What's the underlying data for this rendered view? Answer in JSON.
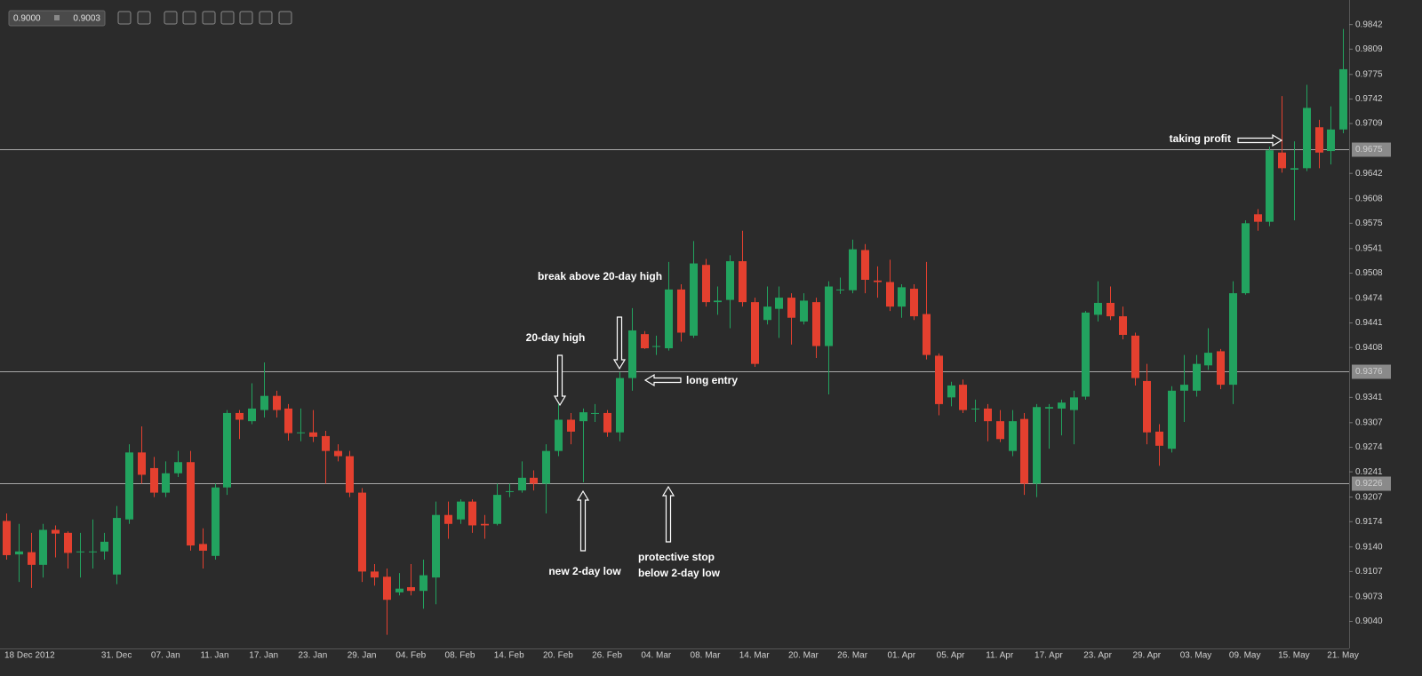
{
  "toolbar": {
    "bid": "0.9000",
    "ask": "0.9003"
  },
  "chart_data": {
    "type": "candlestick",
    "up_color": "#22a35f",
    "down_color": "#e4402f",
    "categories": [
      "18 Dec 2012",
      null,
      null,
      null,
      null,
      null,
      null,
      null,
      null,
      "31. Dec",
      null,
      null,
      null,
      "07. Jan",
      null,
      null,
      null,
      "11. Jan",
      null,
      null,
      null,
      "17. Jan",
      null,
      null,
      null,
      "23. Jan",
      null,
      null,
      null,
      "29. Jan",
      null,
      null,
      null,
      "04. Feb",
      null,
      null,
      null,
      "08. Feb",
      null,
      null,
      null,
      "14. Feb",
      null,
      null,
      null,
      "20. Feb",
      null,
      null,
      null,
      "26. Feb",
      null,
      null,
      null,
      "04. Mar",
      null,
      null,
      null,
      "08. Mar",
      null,
      null,
      null,
      "14. Mar",
      null,
      null,
      null,
      "20. Mar",
      null,
      null,
      null,
      "26. Mar",
      null,
      null,
      null,
      "01. Apr",
      null,
      null,
      null,
      "05. Apr",
      null,
      null,
      null,
      "11. Apr",
      null,
      null,
      null,
      "17. Apr",
      null,
      null,
      null,
      "23. Apr",
      null,
      null,
      null,
      "29. Apr",
      null,
      null,
      null,
      "03. May",
      null,
      null,
      null,
      "09. May",
      null,
      null,
      null,
      "15. May",
      null,
      null,
      null,
      "21. May"
    ],
    "open": [
      0.9175,
      0.913,
      0.9133,
      0.9116,
      0.9163,
      0.9159,
      0.9133,
      0.9133,
      0.9134,
      0.9103,
      0.9177,
      0.9267,
      0.9246,
      0.9213,
      0.9239,
      0.9254,
      0.9144,
      0.9128,
      0.922,
      0.932,
      0.9309,
      0.9324,
      0.9343,
      0.9326,
      0.9293,
      0.9294,
      0.9289,
      0.9269,
      0.9262,
      0.9213,
      0.9107,
      0.91,
      0.9079,
      0.9086,
      0.9081,
      0.9099,
      0.9183,
      0.9177,
      0.9201,
      0.9171,
      0.9171,
      0.9214,
      0.9216,
      0.9233,
      0.9225,
      0.9269,
      0.9311,
      0.9309,
      0.9319,
      0.932,
      0.9294,
      0.9367,
      0.9426,
      0.9409,
      0.9407,
      0.9486,
      0.9424,
      0.9519,
      0.9469,
      0.9472,
      0.9524,
      0.9469,
      0.9445,
      0.946,
      0.9475,
      0.9443,
      0.9469,
      0.941,
      0.9485,
      0.9485,
      0.9539,
      0.9498,
      0.9496,
      0.9463,
      0.9487,
      0.9453,
      0.9397,
      0.9341,
      0.9358,
      0.9325,
      0.9326,
      0.9309,
      0.9269,
      0.9312,
      0.9225,
      0.9326,
      0.9326,
      0.9324,
      0.9342,
      0.9452,
      0.9468,
      0.945,
      0.9424,
      0.9363,
      0.9295,
      0.9272,
      0.935,
      0.935,
      0.9384,
      0.9403,
      0.9358,
      0.9481,
      0.9587,
      0.9577,
      0.967,
      0.9647,
      0.9649,
      0.9704,
      0.9672,
      0.9701
    ],
    "high": [
      0.9185,
      0.9171,
      0.9159,
      0.9171,
      0.9169,
      0.9161,
      0.9159,
      0.9177,
      0.9159,
      0.9195,
      0.9278,
      0.9302,
      0.9261,
      0.9255,
      0.9269,
      0.9269,
      0.9165,
      0.9225,
      0.9324,
      0.9324,
      0.936,
      0.9388,
      0.935,
      0.9332,
      0.9326,
      0.9324,
      0.9296,
      0.9278,
      0.9269,
      0.9219,
      0.9117,
      0.9111,
      0.9105,
      0.9117,
      0.9123,
      0.9201,
      0.9201,
      0.9204,
      0.9204,
      0.9183,
      0.9225,
      0.9225,
      0.9255,
      0.9243,
      0.9278,
      0.9332,
      0.932,
      0.9326,
      0.9332,
      0.9324,
      0.9375,
      0.9461,
      0.943,
      0.9424,
      0.9523,
      0.9493,
      0.9551,
      0.9527,
      0.949,
      0.9532,
      0.9565,
      0.9475,
      0.949,
      0.949,
      0.9481,
      0.9481,
      0.9475,
      0.9497,
      0.9502,
      0.9553,
      0.9547,
      0.9517,
      0.9526,
      0.9493,
      0.9493,
      0.9523,
      0.94,
      0.9362,
      0.9365,
      0.9338,
      0.9332,
      0.9324,
      0.9324,
      0.932,
      0.9332,
      0.9332,
      0.9338,
      0.935,
      0.9457,
      0.9497,
      0.949,
      0.9463,
      0.9428,
      0.9386,
      0.9305,
      0.9356,
      0.9398,
      0.9398,
      0.9434,
      0.9406,
      0.9497,
      0.9579,
      0.9594,
      0.9678,
      0.9746,
      0.9685,
      0.9761,
      0.9714,
      0.9732,
      0.9836
    ],
    "low": [
      0.9123,
      0.9093,
      0.9085,
      0.9099,
      0.9126,
      0.9111,
      0.9099,
      0.9111,
      0.9123,
      0.909,
      0.9171,
      0.9225,
      0.9207,
      0.9207,
      0.9234,
      0.9135,
      0.9111,
      0.9123,
      0.921,
      0.9285,
      0.9305,
      0.9314,
      0.9314,
      0.9283,
      0.9282,
      0.9281,
      0.9225,
      0.9255,
      0.9207,
      0.9093,
      0.9088,
      0.9022,
      0.9075,
      0.9075,
      0.9057,
      0.9063,
      0.9151,
      0.9171,
      0.9159,
      0.9151,
      0.9169,
      0.9207,
      0.9213,
      0.9216,
      0.9185,
      0.9262,
      0.9278,
      0.9227,
      0.9308,
      0.9288,
      0.9282,
      0.935,
      0.9406,
      0.9398,
      0.9404,
      0.9416,
      0.9421,
      0.9463,
      0.9452,
      0.9434,
      0.9463,
      0.9382,
      0.9439,
      0.9421,
      0.9412,
      0.9439,
      0.9394,
      0.9345,
      0.948,
      0.9481,
      0.9481,
      0.9475,
      0.9457,
      0.9448,
      0.9445,
      0.9392,
      0.9317,
      0.9329,
      0.932,
      0.9308,
      0.9282,
      0.9281,
      0.9262,
      0.921,
      0.9207,
      0.9272,
      0.929,
      0.9278,
      0.9338,
      0.9443,
      0.9445,
      0.9419,
      0.9357,
      0.9278,
      0.9249,
      0.9267,
      0.9308,
      0.9342,
      0.9378,
      0.9352,
      0.9332,
      0.9479,
      0.9565,
      0.9571,
      0.9643,
      0.9579,
      0.9645,
      0.9649,
      0.9654,
      0.9696
    ],
    "close": [
      0.9129,
      0.9134,
      0.9116,
      0.9163,
      0.9158,
      0.9132,
      0.9134,
      0.9134,
      0.9147,
      0.9179,
      0.9267,
      0.9237,
      0.9213,
      0.9239,
      0.9254,
      0.9142,
      0.9135,
      0.922,
      0.932,
      0.9311,
      0.9326,
      0.9343,
      0.9324,
      0.9293,
      0.9294,
      0.9288,
      0.9269,
      0.9262,
      0.9213,
      0.9107,
      0.9099,
      0.9069,
      0.9084,
      0.9081,
      0.9102,
      0.9183,
      0.9171,
      0.9201,
      0.9169,
      0.9169,
      0.921,
      0.9215,
      0.9233,
      0.9225,
      0.9269,
      0.9311,
      0.9295,
      0.9321,
      0.932,
      0.9294,
      0.9367,
      0.9431,
      0.9407,
      0.941,
      0.9486,
      0.9428,
      0.9521,
      0.9469,
      0.9471,
      0.9524,
      0.9469,
      0.9386,
      0.9463,
      0.9475,
      0.9448,
      0.9471,
      0.941,
      0.949,
      0.9486,
      0.954,
      0.9499,
      0.9496,
      0.9463,
      0.9489,
      0.945,
      0.9398,
      0.9332,
      0.9357,
      0.9324,
      0.9326,
      0.9309,
      0.9285,
      0.9309,
      0.9225,
      0.9328,
      0.9328,
      0.9334,
      0.9341,
      0.9455,
      0.9468,
      0.945,
      0.9425,
      0.9367,
      0.9294,
      0.9276,
      0.935,
      0.9358,
      0.9386,
      0.9401,
      0.9358,
      0.9481,
      0.9575,
      0.9577,
      0.9673,
      0.9649,
      0.9649,
      0.973,
      0.967,
      0.9701,
      0.9782
    ],
    "ylim": [
      0.9006,
      0.9875
    ],
    "yticks": [
      0.9842,
      0.9809,
      0.9775,
      0.9742,
      0.9709,
      0.9642,
      0.9608,
      0.9575,
      0.9541,
      0.9508,
      0.9474,
      0.9441,
      0.9408,
      0.9341,
      0.9307,
      0.9274,
      0.9241,
      0.9207,
      0.9174,
      {
        "value": 0.914,
        "label": "0.9140"
      },
      0.9107,
      0.9073,
      {
        "value": 0.904,
        "label": "0.9040"
      }
    ],
    "hlines": [
      0.9675,
      0.9376,
      0.9226
    ],
    "annotations": [
      "20-day high",
      "break above 20-day high",
      "long entry",
      "new 2-day low",
      "protective stop",
      "below 2-day low",
      "taking profit"
    ]
  }
}
